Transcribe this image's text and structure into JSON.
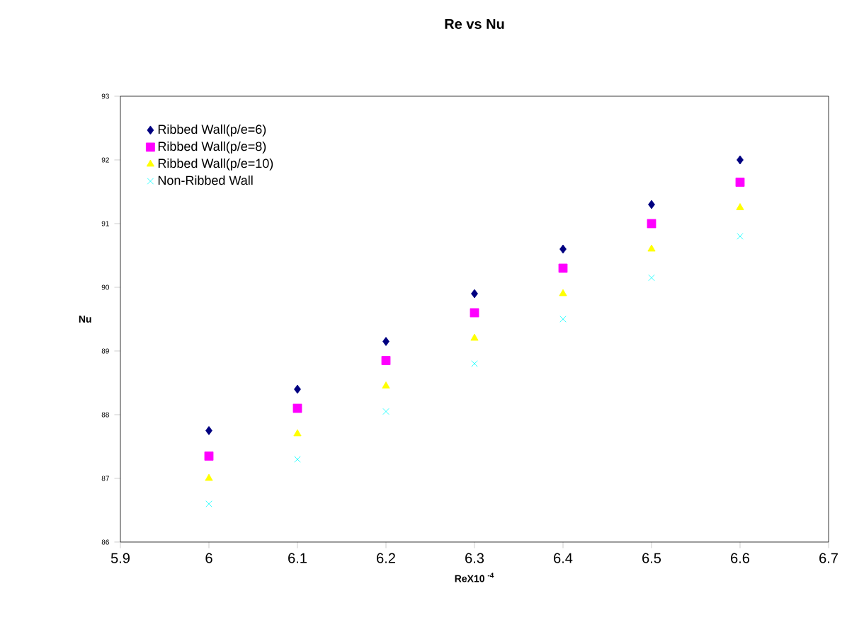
{
  "chart_data": {
    "type": "scatter",
    "title": "Re vs Nu",
    "xlabel": "ReX10 $^{-4}$",
    "ylabel": "Nu",
    "x": [
      6,
      6.1,
      6.2,
      6.3,
      6.4,
      6.5,
      6.6
    ],
    "xlim": [
      5.9,
      6.7
    ],
    "xticks": [
      5.9,
      6,
      6.1,
      6.2,
      6.3,
      6.4,
      6.5,
      6.6,
      6.7
    ],
    "ylim": [
      86,
      93
    ],
    "yticks": [
      86,
      87,
      88,
      89,
      90,
      91,
      92,
      93
    ],
    "grid": false,
    "legend": "top left",
    "series": [
      {
        "name": "Ribbed Wall(p/e=6)",
        "color": "#000080",
        "marker": "diamond",
        "values": [
          87.75,
          88.4,
          89.15,
          89.9,
          90.6,
          91.3,
          92.0
        ]
      },
      {
        "name": "Ribbed Wall(p/e=8)",
        "color": "#ff00ff",
        "marker": "square",
        "values": [
          87.35,
          88.1,
          88.85,
          89.6,
          90.3,
          91.0,
          91.65
        ]
      },
      {
        "name": "Ribbed Wall(p/e=10)",
        "color": "#ffff00",
        "marker": "triangle",
        "values": [
          87.0,
          87.7,
          88.45,
          89.2,
          89.9,
          90.6,
          91.25
        ]
      },
      {
        "name": "Non-Ribbed Wall",
        "color": "#00ffff",
        "marker": "cross",
        "values": [
          86.6,
          87.3,
          88.05,
          88.8,
          89.5,
          90.15,
          90.8
        ]
      }
    ]
  }
}
